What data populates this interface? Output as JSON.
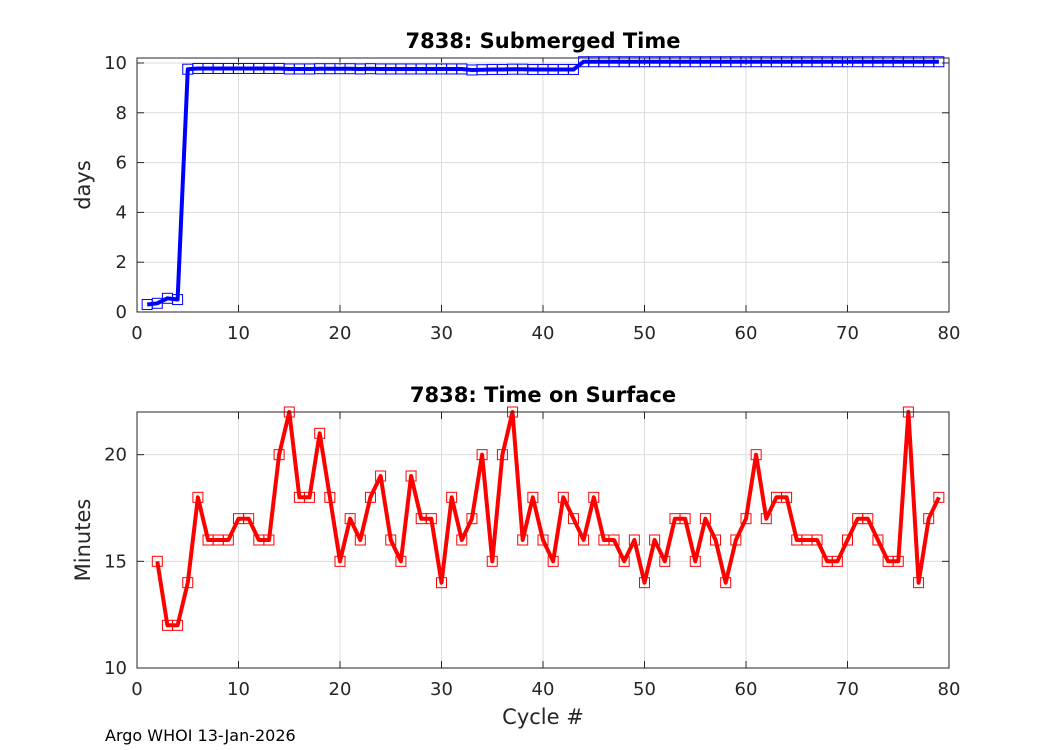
{
  "chart_data": [
    {
      "type": "line",
      "title": "7838: Submerged Time",
      "xlabel": "",
      "ylabel": "days",
      "xlim": [
        0,
        80
      ],
      "ylim": [
        0,
        10.2
      ],
      "xticks": [
        "0",
        "10",
        "20",
        "30",
        "40",
        "50",
        "60",
        "70",
        "80"
      ],
      "yticks": [
        "0",
        "2",
        "4",
        "6",
        "8",
        "10"
      ],
      "grid": true,
      "series": [
        {
          "name": "submerged_time",
          "color": "#0000ff",
          "marker": "square",
          "x": [
            1,
            2,
            3,
            4,
            5,
            6,
            7,
            8,
            9,
            10,
            11,
            12,
            13,
            14,
            15,
            16,
            17,
            18,
            19,
            20,
            21,
            22,
            23,
            24,
            25,
            26,
            27,
            28,
            29,
            30,
            31,
            32,
            33,
            34,
            35,
            36,
            37,
            38,
            39,
            40,
            41,
            42,
            43,
            44,
            45,
            46,
            47,
            48,
            49,
            50,
            51,
            52,
            53,
            54,
            55,
            56,
            57,
            58,
            59,
            60,
            61,
            62,
            63,
            64,
            65,
            66,
            67,
            68,
            69,
            70,
            71,
            72,
            73,
            74,
            75,
            76,
            77,
            78,
            79
          ],
          "y": [
            0.3,
            0.35,
            0.55,
            0.5,
            9.75,
            9.78,
            9.78,
            9.78,
            9.78,
            9.78,
            9.78,
            9.78,
            9.78,
            9.78,
            9.76,
            9.76,
            9.76,
            9.77,
            9.77,
            9.77,
            9.77,
            9.76,
            9.77,
            9.76,
            9.76,
            9.76,
            9.76,
            9.76,
            9.76,
            9.76,
            9.76,
            9.76,
            9.72,
            9.73,
            9.74,
            9.74,
            9.75,
            9.75,
            9.74,
            9.74,
            9.74,
            9.74,
            9.74,
            10.05,
            10.05,
            10.05,
            10.05,
            10.05,
            10.05,
            10.05,
            10.05,
            10.05,
            10.05,
            10.05,
            10.05,
            10.05,
            10.05,
            10.05,
            10.05,
            10.05,
            10.05,
            10.05,
            10.05,
            10.05,
            10.05,
            10.05,
            10.05,
            10.05,
            10.05,
            10.05,
            10.05,
            10.05,
            10.05,
            10.05,
            10.05,
            10.05,
            10.05,
            10.05,
            10.05
          ]
        }
      ]
    },
    {
      "type": "line",
      "title": "7838: Time on Surface",
      "xlabel": "Cycle #",
      "ylabel": "Minutes",
      "xlim": [
        0,
        80
      ],
      "ylim": [
        10,
        22
      ],
      "xticks": [
        "0",
        "10",
        "20",
        "30",
        "40",
        "50",
        "60",
        "70",
        "80"
      ],
      "yticks": [
        "10",
        "15",
        "20"
      ],
      "grid": true,
      "series": [
        {
          "name": "surface_time",
          "color": "#ff0000",
          "marker": "square",
          "x": [
            2,
            3,
            4,
            5,
            6,
            7,
            8,
            9,
            10,
            11,
            12,
            13,
            14,
            15,
            16,
            17,
            18,
            19,
            20,
            21,
            22,
            23,
            24,
            25,
            26,
            27,
            28,
            29,
            30,
            31,
            32,
            33,
            34,
            35,
            36,
            37,
            38,
            39,
            40,
            41,
            42,
            43,
            44,
            45,
            46,
            47,
            48,
            49,
            50,
            51,
            52,
            53,
            54,
            55,
            56,
            57,
            58,
            59,
            60,
            61,
            62,
            63,
            64,
            65,
            66,
            67,
            68,
            69,
            70,
            71,
            72,
            73,
            74,
            75,
            76,
            77,
            78,
            79
          ],
          "y": [
            15,
            12,
            12,
            14,
            18,
            16,
            16,
            16,
            17,
            17,
            16,
            16,
            20,
            22,
            18,
            18,
            21,
            18,
            15,
            17,
            16,
            18,
            19,
            16,
            15,
            19,
            17,
            17,
            14,
            18,
            16,
            17,
            20,
            15,
            20,
            22,
            16,
            18,
            16,
            15,
            18,
            17,
            16,
            18,
            16,
            16,
            15,
            16,
            14,
            16,
            15,
            17,
            17,
            15,
            17,
            16,
            14,
            16,
            17,
            20,
            17,
            18,
            18,
            16,
            16,
            16,
            15,
            15,
            16,
            17,
            17,
            16,
            15,
            15,
            22,
            14,
            17,
            18
          ]
        }
      ]
    }
  ],
  "footer": "Argo WHOI 13-Jan-2026"
}
